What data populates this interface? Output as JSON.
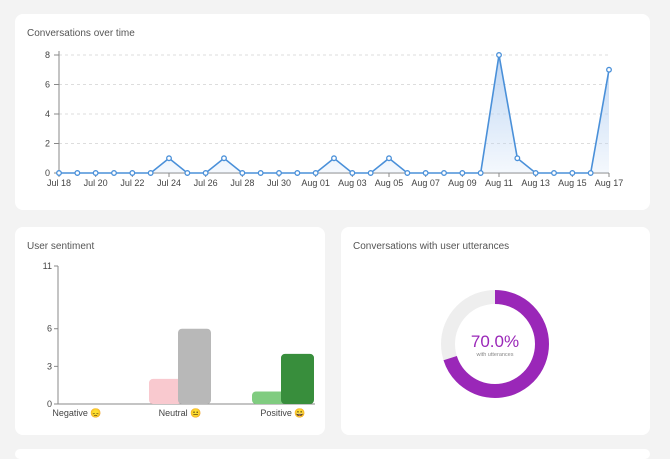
{
  "colors": {
    "line": "#4a90d9",
    "area_top": "#b9d3f3",
    "grid": "#dddddd",
    "negative": "#f9c9cf",
    "neutral": "#b8b8b8",
    "positive_light": "#80cc80",
    "positive_dark": "#388e3c",
    "donut_fill": "#9a27b8",
    "donut_track": "#eeeeee"
  },
  "cards": {
    "time_title": "Conversations over time",
    "sentiment_title": "User sentiment",
    "utterances_title": "Conversations with user utterances"
  },
  "chart_data": [
    {
      "type": "line",
      "title": "Conversations over time",
      "x": [
        "Jul 18",
        "Jul 19",
        "Jul 20",
        "Jul 21",
        "Jul 22",
        "Jul 23",
        "Jul 24",
        "Jul 25",
        "Jul 26",
        "Jul 27",
        "Jul 28",
        "Jul 29",
        "Jul 30",
        "Jul 31",
        "Aug 01",
        "Aug 02",
        "Aug 03",
        "Aug 04",
        "Aug 05",
        "Aug 06",
        "Aug 07",
        "Aug 08",
        "Aug 09",
        "Aug 10",
        "Aug 11",
        "Aug 12",
        "Aug 13",
        "Aug 14",
        "Aug 15",
        "Aug 16",
        "Aug 17"
      ],
      "x_tick_labels": [
        "Jul 18",
        "Jul 20",
        "Jul 22",
        "Jul 24",
        "Jul 26",
        "Jul 28",
        "Jul 30",
        "Aug 01",
        "Aug 03",
        "Aug 05",
        "Aug 07",
        "Aug 09",
        "Aug 11",
        "Aug 13",
        "Aug 15",
        "Aug 17"
      ],
      "values": [
        0,
        0,
        0,
        0,
        0,
        0,
        1,
        0,
        0,
        1,
        0,
        0,
        0,
        0,
        0,
        1,
        0,
        0,
        1,
        0,
        0,
        0,
        0,
        0,
        8,
        1,
        0,
        0,
        0,
        0,
        7
      ],
      "ylim": [
        0,
        8
      ],
      "y_ticks": [
        0,
        2,
        4,
        6,
        8
      ],
      "grid": true
    },
    {
      "type": "bar",
      "title": "User sentiment",
      "categories": [
        "Negative 😞",
        "Neutral 😐",
        "Positive 😀"
      ],
      "series": [
        {
          "values": [
            0,
            2,
            1
          ]
        },
        {
          "values": [
            0,
            6,
            4
          ]
        }
      ],
      "ylim": [
        0,
        11
      ],
      "y_ticks": [
        0,
        3,
        6,
        11
      ]
    },
    {
      "type": "pie",
      "title": "Conversations with user utterances",
      "value": 0.7,
      "label": "70.0%",
      "sublabel": "with utterances"
    }
  ]
}
